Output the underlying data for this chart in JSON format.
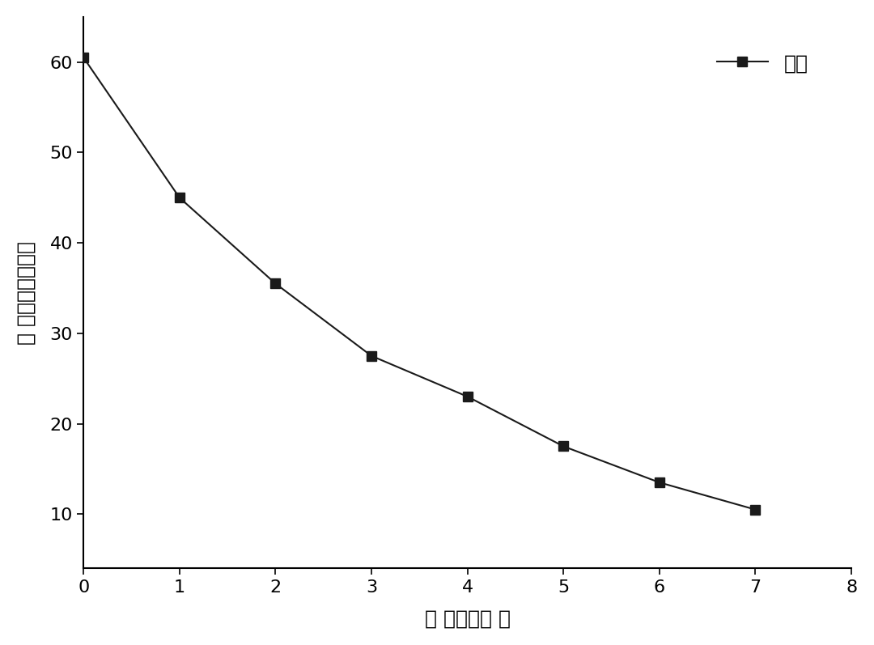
{
  "x": [
    0,
    1,
    2,
    3,
    4,
    5,
    6,
    7
  ],
  "y": [
    60.5,
    45.0,
    35.5,
    27.5,
    23.0,
    17.5,
    13.5,
    10.5
  ],
  "xlim": [
    0,
    8
  ],
  "ylim": [
    4,
    65
  ],
  "xticks": [
    0,
    1,
    2,
    3,
    4,
    5,
    6,
    7,
    8
  ],
  "yticks": [
    10,
    20,
    30,
    40,
    50,
    60
  ],
  "xlabel": "时 间（小时 ）",
  "ylabel": "浓 度（毫克每升）",
  "legend_label": "硬氮",
  "line_color": "#1a1a1a",
  "marker": "s",
  "marker_color": "#1a1a1a",
  "marker_size": 9,
  "line_width": 1.5,
  "line_style": "-",
  "background_color": "#ffffff",
  "tick_fontsize": 16,
  "label_fontsize": 18,
  "legend_fontsize": 18
}
